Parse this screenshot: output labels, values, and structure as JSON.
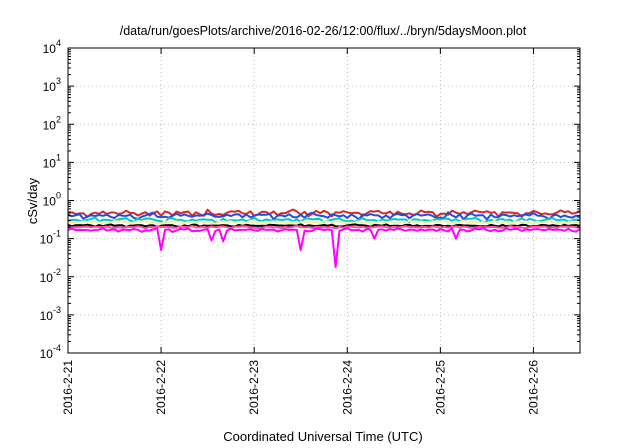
{
  "chart_data": {
    "type": "line",
    "title": "/data/run/goesPlots/archive/2016-02-26/12:00/flux/../bryn/5daysMoon.plot",
    "xlabel": "Coordinated Universal Time (UTC)",
    "ylabel": "cSv/day",
    "y_scale": "log",
    "ylim": [
      0.0001,
      10000
    ],
    "y_ticks": [
      {
        "value": 0.0001,
        "base": "10",
        "exp": "-4"
      },
      {
        "value": 0.001,
        "base": "10",
        "exp": "-3"
      },
      {
        "value": 0.01,
        "base": "10",
        "exp": "-2"
      },
      {
        "value": 0.1,
        "base": "10",
        "exp": "-1"
      },
      {
        "value": 1,
        "base": "10",
        "exp": "0"
      },
      {
        "value": 10,
        "base": "10",
        "exp": "1"
      },
      {
        "value": 100,
        "base": "10",
        "exp": "2"
      },
      {
        "value": 1000,
        "base": "10",
        "exp": "3"
      },
      {
        "value": 10000,
        "base": "10",
        "exp": "4"
      }
    ],
    "x_ticks": [
      "2016-2-21",
      "2016-2-22",
      "2016-2-23",
      "2016-2-24",
      "2016-2-25",
      "2016-2-26"
    ],
    "xlim": [
      "2016-02-21T00:00",
      "2016-02-26T12:00"
    ],
    "grid": true,
    "legend": "none",
    "series": [
      {
        "color": "#d62828",
        "level": 0.47,
        "jitter": 0.14,
        "dips": []
      },
      {
        "color": "#1f4fe0",
        "level": 0.4,
        "jitter": 0.13,
        "dips": []
      },
      {
        "color": "#00c8c8",
        "level": 0.31,
        "jitter": 0.09,
        "dips": []
      },
      {
        "color": "#f0f0a0",
        "level": 0.27,
        "jitter": 0.06,
        "dips": []
      },
      {
        "color": "#000000",
        "level": 0.22,
        "jitter": 0.05,
        "dips": []
      },
      {
        "color": "#ff4fa0",
        "level": 0.2,
        "jitter": 0.05,
        "dips": []
      },
      {
        "color": "#ff00ff",
        "level": 0.17,
        "jitter": 0.07,
        "dips": [
          {
            "t": "2016-02-22T00:05",
            "v": 0.05
          },
          {
            "t": "2016-02-22T13:00",
            "v": 0.09
          },
          {
            "t": "2016-02-22T16:00",
            "v": 0.085
          },
          {
            "t": "2016-02-23T11:30",
            "v": 0.05
          },
          {
            "t": "2016-02-23T20:45",
            "v": 0.018
          },
          {
            "t": "2016-02-24T07:00",
            "v": 0.1
          },
          {
            "t": "2016-02-25T04:00",
            "v": 0.1
          }
        ]
      }
    ]
  }
}
